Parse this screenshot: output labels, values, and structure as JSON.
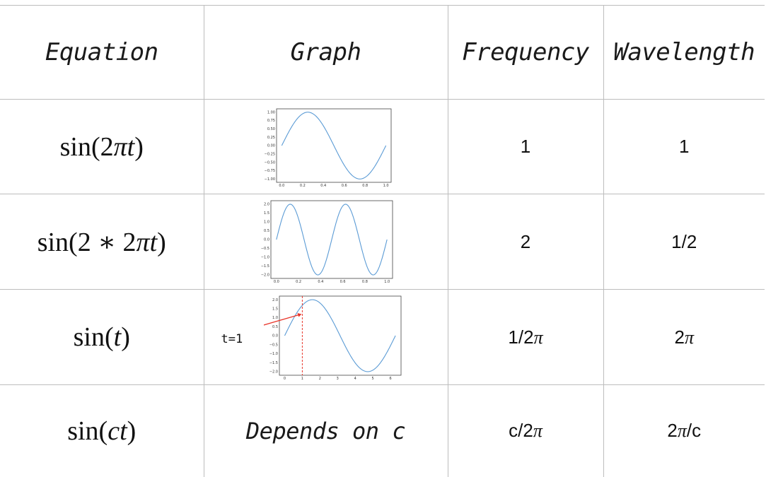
{
  "headers": {
    "equation": "Equation",
    "graph": "Graph",
    "frequency": "Frequency",
    "wavelength": "Wavelength"
  },
  "rows": [
    {
      "equation_text": "sin(2πt)",
      "frequency": "1",
      "wavelength": "1",
      "plot": {
        "x_ticks": [
          "0.0",
          "0.2",
          "0.4",
          "0.6",
          "0.8",
          "1.0"
        ],
        "y_ticks": [
          "1.00",
          "0.75",
          "0.50",
          "0.25",
          "0.00",
          "−0.25",
          "−0.50",
          "−0.75",
          "−1.00"
        ]
      }
    },
    {
      "equation_text": "sin(2 ∗ 2πt)",
      "frequency": "2",
      "wavelength": "1/2",
      "plot": {
        "x_ticks": [
          "0.0",
          "0.2",
          "0.4",
          "0.6",
          "0.8",
          "1.0"
        ],
        "y_ticks": [
          "2.0",
          "1.5",
          "1.0",
          "0.5",
          "0.0",
          "−0.5",
          "−1.0",
          "−1.5",
          "−2.0"
        ]
      }
    },
    {
      "equation_text": "sin(t)",
      "frequency": "1/2π",
      "wavelength": "2π",
      "annotation": "t=1",
      "plot": {
        "x_ticks": [
          "0",
          "1",
          "2",
          "3",
          "4",
          "5",
          "6"
        ],
        "y_ticks": [
          "2.0",
          "1.5",
          "1.0",
          "0.5",
          "0.0",
          "−0.5",
          "−1.0",
          "−1.5",
          "−2.0"
        ]
      }
    },
    {
      "equation_text": "sin(ct)",
      "graph_text": "Depends on c",
      "frequency": "c/2π",
      "wavelength": "2π/c"
    }
  ],
  "colors": {
    "curve": "#5b9bd5",
    "marker": "#e8352a"
  }
}
